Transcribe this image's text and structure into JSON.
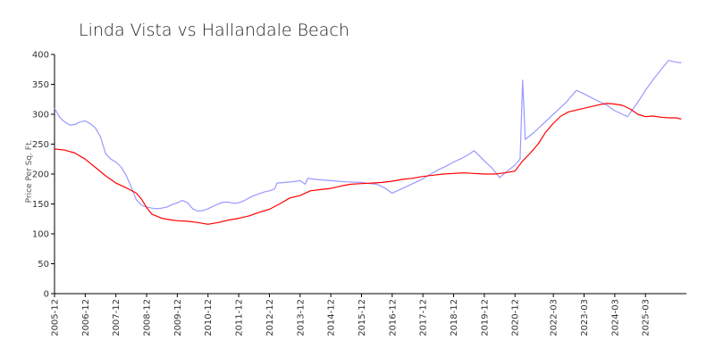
{
  "chart_data": {
    "type": "line",
    "title": "Linda Vista vs Hallandale Beach",
    "xlabel": "",
    "ylabel": "Price Per Sq. Ft.",
    "ylim": [
      0,
      400
    ],
    "xlim": [
      "2005-12",
      "2026-07"
    ],
    "grid": false,
    "legend": "none",
    "y_ticks": [
      0,
      50,
      100,
      150,
      200,
      250,
      300,
      350,
      400
    ],
    "x_ticks": [
      "2005-12",
      "2006-12",
      "2007-12",
      "2008-12",
      "2009-12",
      "2010-12",
      "2011-12",
      "2012-12",
      "2013-12",
      "2014-12",
      "2015-12",
      "2016-12",
      "2017-12",
      "2018-12",
      "2019-12",
      "2020-12",
      "2022-03",
      "2023-03",
      "2024-03",
      "2025-03"
    ],
    "series": [
      {
        "color": "#9999ff",
        "points": [
          [
            "2005-12",
            310
          ],
          [
            "2006-02",
            295
          ],
          [
            "2006-04",
            287
          ],
          [
            "2006-06",
            282
          ],
          [
            "2006-08",
            283
          ],
          [
            "2006-10",
            287
          ],
          [
            "2006-12",
            289
          ],
          [
            "2007-02",
            284
          ],
          [
            "2007-04",
            277
          ],
          [
            "2007-06",
            262
          ],
          [
            "2007-08",
            234
          ],
          [
            "2007-10",
            225
          ],
          [
            "2007-12",
            220
          ],
          [
            "2008-02",
            212
          ],
          [
            "2008-04",
            198
          ],
          [
            "2008-06",
            178
          ],
          [
            "2008-08",
            157
          ],
          [
            "2008-10",
            148
          ],
          [
            "2008-12",
            145
          ],
          [
            "2009-02",
            143
          ],
          [
            "2009-04",
            142
          ],
          [
            "2009-06",
            143
          ],
          [
            "2009-08",
            145
          ],
          [
            "2009-10",
            149
          ],
          [
            "2009-12",
            152
          ],
          [
            "2010-02",
            156
          ],
          [
            "2010-04",
            152
          ],
          [
            "2010-06",
            142
          ],
          [
            "2010-08",
            138
          ],
          [
            "2010-10",
            139
          ],
          [
            "2010-12",
            142
          ],
          [
            "2011-02",
            146
          ],
          [
            "2011-04",
            150
          ],
          [
            "2011-06",
            153
          ],
          [
            "2011-08",
            153
          ],
          [
            "2011-10",
            151
          ],
          [
            "2011-12",
            152
          ],
          [
            "2012-02",
            155
          ],
          [
            "2012-04",
            160
          ],
          [
            "2012-06",
            164
          ],
          [
            "2012-08",
            167
          ],
          [
            "2012-10",
            170
          ],
          [
            "2012-12",
            172
          ],
          [
            "2013-02",
            175
          ],
          [
            "2013-03",
            185
          ],
          [
            "2013-06",
            186
          ],
          [
            "2013-09",
            187
          ],
          [
            "2013-12",
            189
          ],
          [
            "2014-02",
            183
          ],
          [
            "2014-03",
            193
          ],
          [
            "2014-06",
            191
          ],
          [
            "2014-12",
            189
          ],
          [
            "2015-06",
            187
          ],
          [
            "2015-12",
            186
          ],
          [
            "2016-03",
            184
          ],
          [
            "2016-06",
            183
          ],
          [
            "2016-09",
            177
          ],
          [
            "2016-12",
            168
          ],
          [
            "2017-03",
            174
          ],
          [
            "2017-06",
            180
          ],
          [
            "2017-09",
            186
          ],
          [
            "2017-12",
            192
          ],
          [
            "2018-03",
            200
          ],
          [
            "2018-06",
            207
          ],
          [
            "2018-09",
            213
          ],
          [
            "2018-12",
            220
          ],
          [
            "2019-03",
            226
          ],
          [
            "2019-06",
            233
          ],
          [
            "2019-08",
            239
          ],
          [
            "2019-10",
            231
          ],
          [
            "2019-12",
            222
          ],
          [
            "2020-03",
            210
          ],
          [
            "2020-06",
            194
          ],
          [
            "2020-09",
            205
          ],
          [
            "2020-12",
            215
          ],
          [
            "2021-02",
            225
          ],
          [
            "2021-03",
            357
          ],
          [
            "2021-04",
            258
          ],
          [
            "2021-07",
            268
          ],
          [
            "2021-10",
            280
          ],
          [
            "2022-03",
            300
          ],
          [
            "2022-08",
            320
          ],
          [
            "2022-12",
            340
          ],
          [
            "2023-03",
            334
          ],
          [
            "2023-08",
            323
          ],
          [
            "2023-12",
            315
          ],
          [
            "2024-03",
            306
          ],
          [
            "2024-06",
            300
          ],
          [
            "2024-08",
            296
          ],
          [
            "2024-12",
            320
          ],
          [
            "2025-03",
            340
          ],
          [
            "2025-06",
            358
          ],
          [
            "2025-09",
            374
          ],
          [
            "2025-12",
            390
          ],
          [
            "2026-03",
            387
          ],
          [
            "2026-05",
            386
          ]
        ]
      },
      {
        "color": "#ff0000",
        "points": [
          [
            "2005-12",
            242
          ],
          [
            "2006-04",
            240
          ],
          [
            "2006-08",
            235
          ],
          [
            "2006-12",
            225
          ],
          [
            "2007-04",
            211
          ],
          [
            "2007-08",
            197
          ],
          [
            "2007-12",
            185
          ],
          [
            "2008-04",
            177
          ],
          [
            "2008-08",
            168
          ],
          [
            "2008-10",
            158
          ],
          [
            "2008-12",
            144
          ],
          [
            "2009-02",
            133
          ],
          [
            "2009-06",
            126
          ],
          [
            "2009-10",
            123
          ],
          [
            "2009-12",
            122
          ],
          [
            "2010-04",
            121
          ],
          [
            "2010-08",
            119
          ],
          [
            "2010-12",
            116
          ],
          [
            "2011-04",
            119
          ],
          [
            "2011-08",
            123
          ],
          [
            "2011-12",
            126
          ],
          [
            "2012-04",
            130
          ],
          [
            "2012-08",
            136
          ],
          [
            "2012-12",
            141
          ],
          [
            "2013-04",
            150
          ],
          [
            "2013-08",
            160
          ],
          [
            "2013-12",
            164
          ],
          [
            "2014-04",
            172
          ],
          [
            "2014-08",
            174
          ],
          [
            "2014-12",
            176
          ],
          [
            "2015-04",
            180
          ],
          [
            "2015-08",
            183
          ],
          [
            "2015-12",
            184
          ],
          [
            "2016-04",
            185
          ],
          [
            "2016-08",
            186
          ],
          [
            "2016-12",
            188
          ],
          [
            "2017-04",
            191
          ],
          [
            "2017-08",
            193
          ],
          [
            "2017-12",
            196
          ],
          [
            "2018-04",
            198
          ],
          [
            "2018-08",
            200
          ],
          [
            "2018-12",
            201
          ],
          [
            "2019-04",
            202
          ],
          [
            "2019-08",
            201
          ],
          [
            "2019-12",
            200
          ],
          [
            "2020-04",
            200
          ],
          [
            "2020-08",
            202
          ],
          [
            "2020-12",
            205
          ],
          [
            "2021-03",
            222
          ],
          [
            "2021-06",
            235
          ],
          [
            "2021-09",
            250
          ],
          [
            "2021-12",
            270
          ],
          [
            "2022-03",
            285
          ],
          [
            "2022-06",
            297
          ],
          [
            "2022-09",
            304
          ],
          [
            "2022-12",
            307
          ],
          [
            "2023-03",
            310
          ],
          [
            "2023-06",
            313
          ],
          [
            "2023-09",
            316
          ],
          [
            "2023-12",
            318
          ],
          [
            "2024-03",
            317
          ],
          [
            "2024-06",
            315
          ],
          [
            "2024-09",
            309
          ],
          [
            "2024-12",
            300
          ],
          [
            "2025-03",
            296
          ],
          [
            "2025-06",
            297
          ],
          [
            "2025-09",
            295
          ],
          [
            "2025-12",
            294
          ],
          [
            "2026-03",
            294
          ],
          [
            "2026-05",
            292
          ]
        ]
      }
    ]
  }
}
